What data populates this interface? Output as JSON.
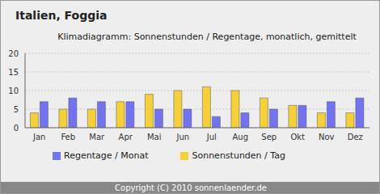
{
  "chart_data": {
    "type": "bar",
    "title": "Italien, Foggia",
    "subtitle": "Klimadiagramm: Sonnenstunden / Regentage, monatlich, gemittelt",
    "annotations": [
      "Copyright (C) 2010 sonnenlaender.de"
    ],
    "categories": [
      "Jan",
      "Feb",
      "Mar",
      "Apr",
      "Mai",
      "Jun",
      "Jul",
      "Aug",
      "Sep",
      "Okt",
      "Nov",
      "Dez"
    ],
    "series": [
      {
        "name": "Sonnenstunden / Tag",
        "color": "#f5d03a",
        "values": [
          4,
          5,
          5,
          7,
          9,
          10,
          11,
          10,
          8,
          6,
          4,
          4
        ]
      },
      {
        "name": "Regentage / Monat",
        "color": "#7373f0",
        "values": [
          7,
          8,
          7,
          7,
          5,
          5,
          3,
          4,
          5,
          6,
          7,
          8
        ]
      }
    ],
    "ylim": [
      0,
      20
    ],
    "yticks": [
      0,
      5,
      10,
      15,
      20
    ],
    "grid": true,
    "legend": "bottom"
  }
}
